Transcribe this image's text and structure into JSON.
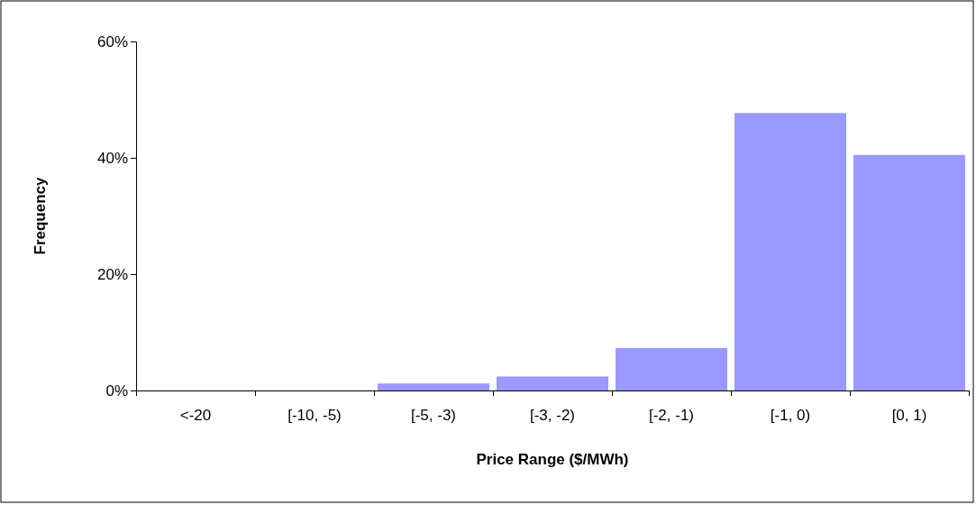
{
  "chart_data": {
    "type": "bar",
    "xlabel": "Price Range ($/MWh)",
    "ylabel": "Frequency",
    "categories": [
      "<-20",
      "[-10, -5)",
      "[-5, -3)",
      "[-3, -2)",
      "[-2, -1)",
      "[-1, 0)",
      "[0, 1)"
    ],
    "values": [
      0,
      0,
      1.2,
      2.4,
      7.3,
      47.7,
      40.5
    ],
    "color": "#9999ff",
    "ylim": [
      0,
      60
    ],
    "yticks": [
      {
        "value": 0,
        "label": "0%"
      },
      {
        "value": 20,
        "label": "20%"
      },
      {
        "value": 40,
        "label": "40%"
      },
      {
        "value": 60,
        "label": "60%"
      }
    ]
  }
}
